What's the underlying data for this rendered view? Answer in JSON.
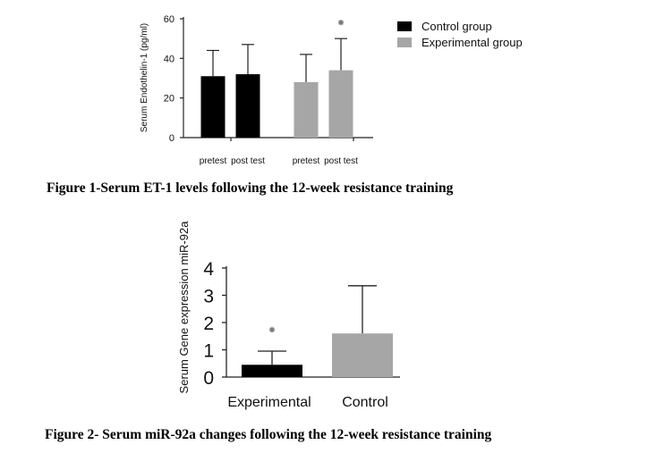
{
  "chart_data": [
    {
      "type": "bar",
      "ylabel": "Serum Endothelin-1 (pg/ml)",
      "ylim": [
        0,
        60
      ],
      "yticks": [
        "0",
        "20",
        "40",
        "60"
      ],
      "categories": [
        "pretest",
        "post test",
        "pretest",
        "post test"
      ],
      "values": [
        31,
        32,
        28,
        34
      ],
      "error": [
        13,
        15,
        14,
        16
      ],
      "bar_colors": [
        "#000000",
        "#000000",
        "#a6a6a6",
        "#a6a6a6"
      ],
      "significance": [
        "",
        "",
        "",
        "*"
      ],
      "legend": [
        {
          "name": "Control group",
          "color": "#000000"
        },
        {
          "name": "Experimental group",
          "color": "#a6a6a6"
        }
      ],
      "legend_placement": "top-right",
      "caption": "Figure 1-Serum ET-1 levels following the 12-week resistance training"
    },
    {
      "type": "bar",
      "ylabel": "Serum Gene expression miR-92a",
      "ylim": [
        0,
        4
      ],
      "yticks": [
        "0",
        "1",
        "2",
        "3",
        "4"
      ],
      "categories": [
        "Experimental",
        "Control"
      ],
      "values": [
        0.45,
        1.6
      ],
      "error": [
        0.5,
        1.75
      ],
      "bar_colors": [
        "#000000",
        "#a6a6a6"
      ],
      "significance": [
        "*",
        ""
      ],
      "caption": "Figure 2- Serum miR-92a changes following the 12-week resistance training"
    }
  ]
}
